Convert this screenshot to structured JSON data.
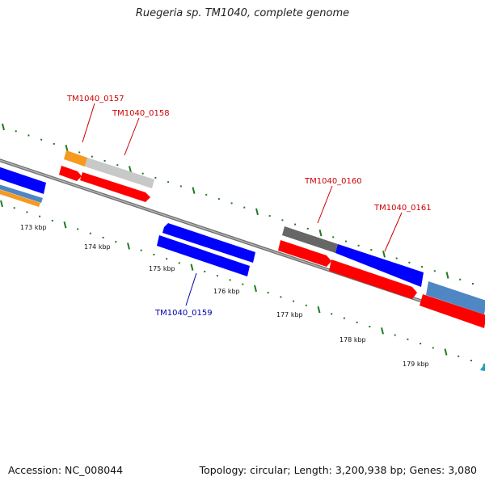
{
  "title": "Ruegeria sp. TM1040, complete genome",
  "footer": {
    "accession": "Accession: NC_008044",
    "summary": "Topology: circular; Length: 3,200,938 bp; Genes: 3,080"
  },
  "colors": {
    "backbone": "#8a8a8a",
    "tick": "#1e7a1e",
    "red": "#ff0000",
    "blue": "#0000ff",
    "steel": "#4f87c4",
    "orange": "#f59a1e",
    "lightgray": "#c8c8c8",
    "darkgray": "#666666",
    "cyan": "#1aa0c8",
    "label_red": "#cc0000",
    "label_blue": "#0000aa"
  },
  "scale": {
    "kbp_labels": [
      "173 kbp",
      "174 kbp",
      "175 kbp",
      "176 kbp",
      "177 kbp",
      "178 kbp",
      "179 kbp"
    ]
  },
  "gene_labels": [
    {
      "id": "TM1040_0157",
      "color": "red"
    },
    {
      "id": "TM1040_0158",
      "color": "red"
    },
    {
      "id": "TM1040_0159",
      "color": "blue"
    },
    {
      "id": "TM1040_0160",
      "color": "red"
    },
    {
      "id": "TM1040_0161",
      "color": "red"
    }
  ]
}
